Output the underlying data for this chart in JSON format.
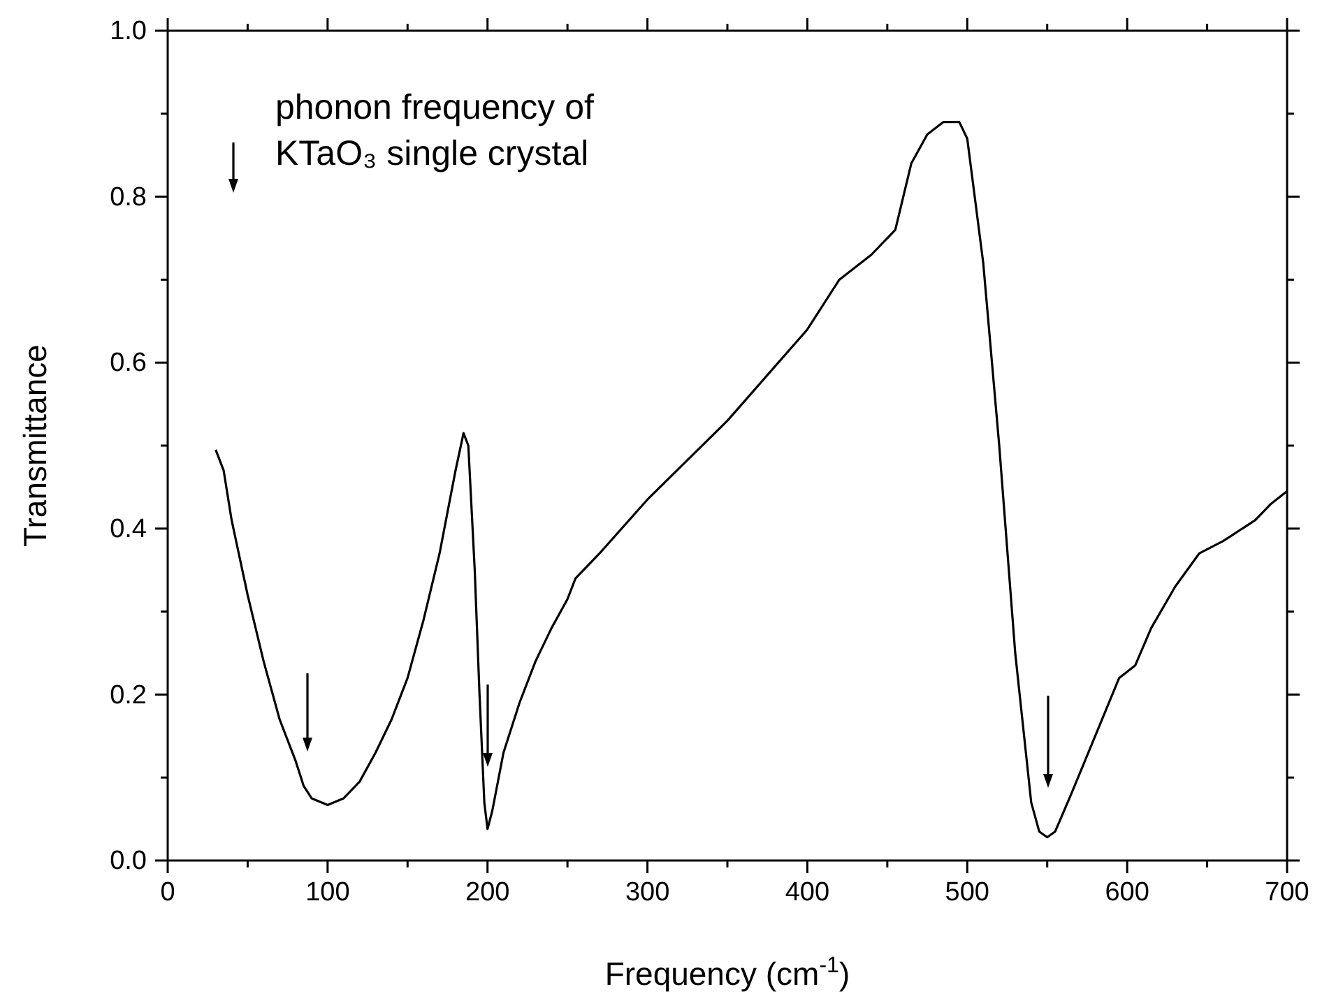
{
  "chart_data": {
    "type": "line",
    "xlabel": "Frequency (cm$^{-1}$)",
    "ylabel": "Transmittance",
    "annotations": [
      "phonon frequency of",
      "KTaO₃ single crystal"
    ],
    "xlim": [
      0,
      700
    ],
    "xticks": [
      0,
      {
        "value": 50,
        "label": null
      },
      100,
      {
        "value": 150,
        "label": null
      },
      200,
      {
        "value": 250,
        "label": null
      },
      300,
      {
        "value": 350,
        "label": null
      },
      400,
      {
        "value": 450,
        "label": null
      },
      500,
      {
        "value": 550,
        "label": null
      },
      600,
      {
        "value": 650,
        "label": null
      },
      700
    ],
    "ylim": [
      0,
      1
    ],
    "yticks": [
      {
        "value": 0,
        "label": "0.0"
      },
      {
        "value": 0.1,
        "label": null
      },
      {
        "value": 0.2,
        "label": "0.2"
      },
      {
        "value": 0.3,
        "label": null
      },
      {
        "value": 0.4,
        "label": "0.4"
      },
      {
        "value": 0.5,
        "label": null
      },
      {
        "value": 0.6,
        "label": "0.6"
      },
      {
        "value": 0.7,
        "label": null
      },
      {
        "value": 0.8,
        "label": "0.8"
      },
      {
        "value": 0.9,
        "label": null
      },
      {
        "value": 1,
        "label": "1.0"
      }
    ],
    "grid": false,
    "series": [
      {
        "color": "#000000",
        "x": [
          30,
          35,
          40,
          50,
          60,
          70,
          80,
          85,
          90,
          100,
          110,
          120,
          130,
          140,
          150,
          160,
          170,
          180,
          185,
          188,
          192,
          195,
          198,
          200,
          203,
          210,
          220,
          230,
          240,
          250,
          255,
          270,
          300,
          350,
          400,
          420,
          440,
          455,
          465,
          475,
          485,
          495,
          500,
          510,
          520,
          530,
          540,
          545,
          550,
          555,
          565,
          580,
          595,
          605,
          615,
          630,
          645,
          660,
          680,
          690,
          700
        ],
        "values": [
          0.495,
          0.47,
          0.41,
          0.32,
          0.24,
          0.17,
          0.12,
          0.09,
          0.075,
          0.067,
          0.075,
          0.095,
          0.13,
          0.17,
          0.22,
          0.29,
          0.37,
          0.47,
          0.515,
          0.5,
          0.35,
          0.2,
          0.07,
          0.038,
          0.06,
          0.13,
          0.19,
          0.24,
          0.28,
          0.315,
          0.34,
          0.37,
          0.435,
          0.53,
          0.64,
          0.7,
          0.73,
          0.76,
          0.84,
          0.875,
          0.89,
          0.89,
          0.87,
          0.72,
          0.5,
          0.25,
          0.07,
          0.035,
          0.028,
          0.035,
          0.08,
          0.15,
          0.22,
          0.235,
          0.28,
          0.33,
          0.37,
          0.385,
          0.41,
          0.43,
          0.445
        ]
      }
    ]
  }
}
